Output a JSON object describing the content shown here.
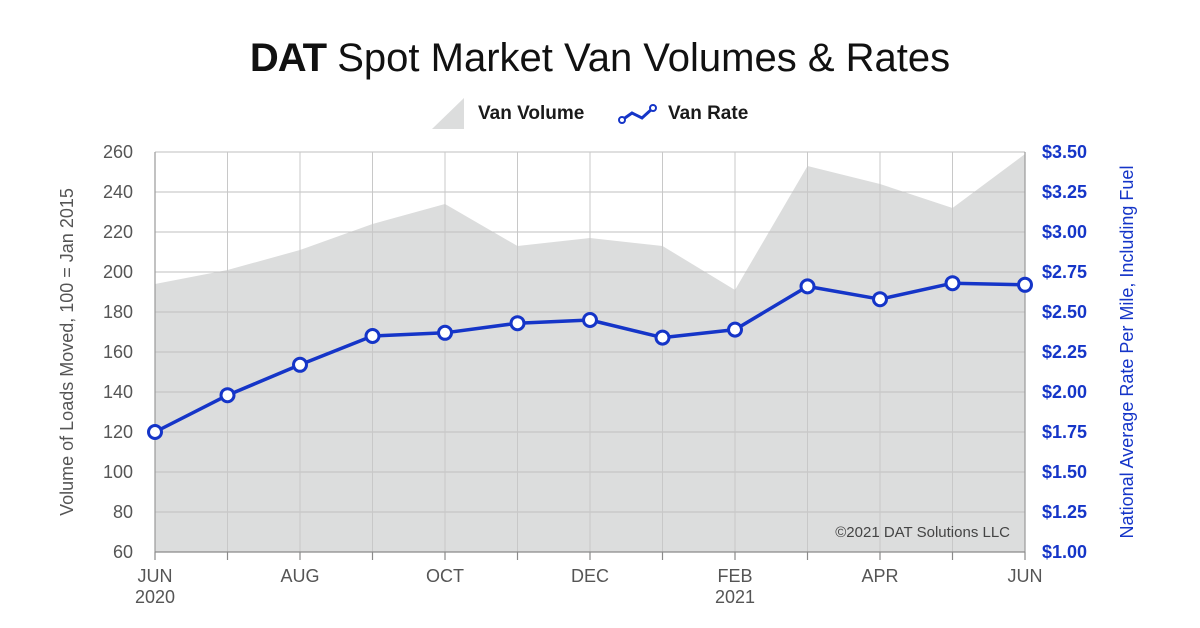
{
  "title_brand": "DAT",
  "title_rest": "Spot Market Van Volumes & Rates",
  "legend": [
    {
      "label": "Van Volume",
      "icon": "area-swatch-icon",
      "color": "#dcdddd"
    },
    {
      "label": "Van Rate",
      "icon": "line-swatch-icon",
      "color": "#1535c8"
    }
  ],
  "copyright": "©2021 DAT Solutions LLC",
  "chart_data": {
    "type": "line",
    "x": [
      "2020-06",
      "2020-07",
      "2020-08",
      "2020-09",
      "2020-10",
      "2020-11",
      "2020-12",
      "2021-01",
      "2021-02",
      "2021-03",
      "2021-04",
      "2021-05",
      "2021-06"
    ],
    "x_tick_labels": [
      {
        "index": 0,
        "lines": [
          "JUN",
          "2020"
        ]
      },
      {
        "index": 2,
        "lines": [
          "AUG"
        ]
      },
      {
        "index": 4,
        "lines": [
          "OCT"
        ]
      },
      {
        "index": 6,
        "lines": [
          "DEC"
        ]
      },
      {
        "index": 8,
        "lines": [
          "FEB",
          "2021"
        ]
      },
      {
        "index": 10,
        "lines": [
          "APR"
        ]
      },
      {
        "index": 12,
        "lines": [
          "JUN"
        ]
      }
    ],
    "series": [
      {
        "name": "Van Volume",
        "type": "area",
        "axis": "left",
        "color": "#dcdddd",
        "values": [
          194,
          201,
          211,
          224,
          234,
          213,
          217,
          213,
          191,
          253,
          244,
          232,
          259
        ]
      },
      {
        "name": "Van Rate",
        "type": "line",
        "axis": "right",
        "color": "#1535c8",
        "values": [
          1.75,
          1.98,
          2.17,
          2.35,
          2.37,
          2.43,
          2.45,
          2.34,
          2.39,
          2.66,
          2.58,
          2.68,
          2.67
        ]
      }
    ],
    "y_left": {
      "label": "Volume of Loads Moved, 100 = Jan 2015",
      "min": 60,
      "max": 260,
      "ticks": [
        "60",
        "80",
        "100",
        "120",
        "140",
        "160",
        "180",
        "200",
        "220",
        "240",
        "260"
      ]
    },
    "y_right": {
      "label": "National Average Rate Per Mile, Including Fuel",
      "min": 1.0,
      "max": 3.5,
      "ticks": [
        "$1.00",
        "$1.25",
        "$1.50",
        "$1.75",
        "$2.00",
        "$2.25",
        "$2.50",
        "$2.75",
        "$3.00",
        "$3.25",
        "$3.50"
      ]
    },
    "grid": true,
    "legend_position": "top-center"
  }
}
